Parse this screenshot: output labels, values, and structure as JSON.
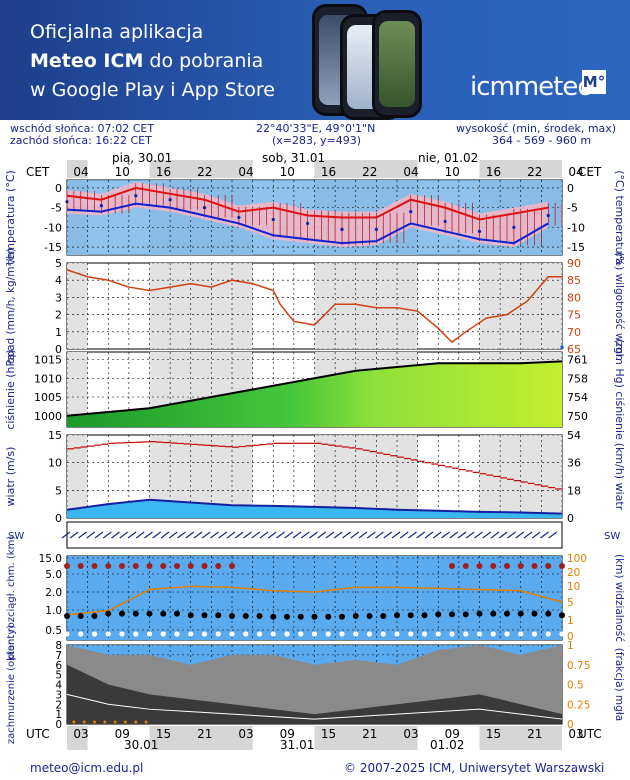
{
  "banner": {
    "line1": "Oficjalna aplikacja",
    "line2_bold": "Meteo ICM",
    "line2_rest": " do pobrania",
    "line3": "w Google Play i App Store",
    "logo_text": "icmmeteo",
    "logo_box": "M°"
  },
  "header": {
    "sunrise": "wschód słońca: 07:02 CET",
    "sunset": "zachód słońca: 16:22 CET",
    "coords": "22°40'33\"E, 49°0'1\"N",
    "grid": "(x=283,  y=493)",
    "alt_label": "wysokość (min, środek, max)",
    "alt_values": "364 - 569 - 960 m"
  },
  "time_axis": {
    "cet": "CET",
    "utc": "UTC",
    "cet_ticks": [
      "04",
      "10",
      "16",
      "22",
      "04",
      "10",
      "16",
      "22",
      "04",
      "10",
      "16",
      "22",
      "04"
    ],
    "utc_ticks": [
      "03",
      "09",
      "15",
      "21",
      "03",
      "09",
      "15",
      "21",
      "03",
      "09",
      "15",
      "21",
      "03"
    ],
    "days_top": [
      "pią, 30.01",
      "sob, 31.01",
      "nie, 01.02"
    ],
    "days_bottom": [
      "30.01",
      "31.01",
      "01.02"
    ]
  },
  "footer": {
    "email": "meteo@icm.edu.pl",
    "copyright": "© 2007-2025 ICM, Uniwersytet Warszawski"
  },
  "colors": {
    "temp_max": "#e01010",
    "temp_min": "#1020d0",
    "rh_line": "#d04010",
    "pressure_line": "#000000",
    "wind_mean": "#0090e0",
    "wind_gust": "#c00000",
    "cloud_base": "#a02020",
    "visibility": "#e08000"
  },
  "chart_data": [
    {
      "type": "line",
      "name": "temperature",
      "ylabel": "temperatura (°C)",
      "ylabel_right": "(°C) temperatura",
      "ylim": [
        -17,
        2
      ],
      "yticks": [
        0,
        -5,
        -10,
        -15
      ],
      "x_hours": [
        0,
        6,
        12,
        18,
        24,
        30,
        36,
        42,
        48,
        54,
        60,
        66,
        72
      ],
      "t_max": [
        -2,
        -3,
        0,
        -1.5,
        -3,
        -6,
        -5,
        -7,
        -7.5,
        -7.5,
        -3,
        -5,
        -8,
        -6.5,
        -5
      ],
      "t_mean": [
        -3.5,
        -4.5,
        -2,
        -3,
        -5,
        -7.5,
        -8,
        -9,
        -10.5,
        -10.5,
        -6,
        -8.5,
        -11,
        -10,
        -7
      ],
      "t_min": [
        -5.5,
        -6,
        -4,
        -5,
        -7,
        -9,
        -12,
        -13,
        -14,
        -13.5,
        -9,
        -11,
        -13,
        -14,
        -9
      ],
      "point_hours": [
        0,
        5,
        10,
        15,
        20,
        25,
        30,
        35,
        40,
        45,
        50,
        55,
        60,
        65,
        70
      ]
    },
    {
      "type": "line",
      "name": "precipitation_humidity",
      "ylabel": "opad (mm/h, kg/m²/h)",
      "ylabel_right": "(%) wilgotność wzgl.",
      "ylim": [
        0,
        5
      ],
      "yticks": [
        0,
        1,
        2,
        3,
        4,
        5
      ],
      "ylim_right": [
        65,
        90
      ],
      "yticks_right": [
        65,
        70,
        75,
        80,
        85,
        90
      ],
      "rh_hours": [
        0,
        3,
        6,
        9,
        12,
        15,
        18,
        21,
        24,
        27,
        30,
        31,
        33,
        36,
        39,
        42,
        45,
        48,
        51,
        54,
        56,
        58,
        61,
        64,
        67,
        70,
        72
      ],
      "rh": [
        88,
        86,
        85,
        83,
        82,
        83,
        84,
        83,
        85,
        84,
        82,
        78,
        73,
        72,
        78,
        78,
        77,
        77,
        76,
        71,
        67,
        70,
        74,
        75,
        79,
        86,
        86
      ],
      "precip": [
        0,
        0,
        0,
        0,
        0,
        0,
        0,
        0,
        0,
        0,
        0,
        0,
        0,
        0,
        0,
        0,
        0,
        0,
        0,
        0,
        0,
        0,
        0,
        0,
        0,
        0,
        0.2
      ]
    },
    {
      "type": "area",
      "name": "pressure",
      "ylabel": "ciśnienie (hPa)",
      "ylabel_right": "(mm Hg) ciśnienie",
      "ylim": [
        997,
        1017
      ],
      "yticks": [
        1000,
        1005,
        1010,
        1015
      ],
      "yticks_right": [
        750,
        754,
        758,
        761
      ],
      "hours": [
        0,
        6,
        12,
        18,
        24,
        30,
        36,
        42,
        48,
        54,
        60,
        66,
        72
      ],
      "hpa": [
        1000,
        1001,
        1002,
        1004,
        1006,
        1008,
        1010,
        1012,
        1013,
        1014,
        1014,
        1014,
        1014.5
      ]
    },
    {
      "type": "bar",
      "name": "wind",
      "ylabel": "wiatr (m/s)",
      "ylabel_right": "(km/h) wiatr",
      "ylim": [
        0,
        15
      ],
      "yticks": [
        0,
        5,
        10,
        15
      ],
      "yticks_right": [
        0,
        18,
        36,
        54
      ],
      "hours": [
        0,
        6,
        12,
        18,
        24,
        30,
        36,
        42,
        48,
        54,
        60,
        66,
        72
      ],
      "mean": [
        1.5,
        2.5,
        3.3,
        2.8,
        2.3,
        2.2,
        2.0,
        1.8,
        1.5,
        1.3,
        1.1,
        1.0,
        0.8
      ],
      "gust": [
        12.5,
        13.5,
        13.8,
        13.3,
        12.8,
        13.5,
        13.5,
        12.5,
        11.0,
        9.5,
        8.0,
        6.5,
        5.0
      ]
    },
    {
      "type": "scatter",
      "name": "wind_direction",
      "label_left": "SW",
      "label_right": "SW",
      "hours": [
        0,
        6,
        12,
        18,
        24,
        30,
        36,
        42,
        48,
        54,
        60,
        66,
        72
      ]
    },
    {
      "type": "scatter",
      "name": "cloud_base_visibility",
      "ylabel": "pion. rozciągł. chm. (km)",
      "ylabel_right": "(km) widzialność",
      "yticks": [
        "0.5",
        "1.0",
        "2.0",
        "5.0",
        "15.0"
      ],
      "yticks_right": [
        "0",
        "1",
        "5",
        "10",
        "20",
        "100"
      ],
      "hours": [
        0,
        6,
        12,
        18,
        24,
        30,
        36,
        42,
        48,
        54,
        60,
        66,
        72
      ],
      "visibility_km": [
        3,
        4,
        15,
        18,
        17,
        14,
        13,
        17,
        17,
        16,
        15,
        14,
        7
      ],
      "cloud_base_km": [
        1.0,
        1.3,
        1.3,
        1.1,
        1.0,
        0.9,
        0.9,
        1.0,
        1.1,
        1.2,
        1.3,
        1.3,
        1.1
      ]
    },
    {
      "type": "area",
      "name": "cloud_cover",
      "ylabel": "zachmurzenie (oktanty)",
      "ylabel_right": "(frakcja) mgła",
      "ylim": [
        0,
        8
      ],
      "yticks": [
        0,
        1,
        2,
        3,
        4,
        5,
        6,
        7,
        8
      ],
      "yticks_right": [
        "0",
        "0.25",
        "0.5",
        "0.75",
        "1"
      ],
      "hours": [
        0,
        6,
        12,
        18,
        24,
        30,
        36,
        42,
        48,
        54,
        60,
        66,
        72
      ],
      "low": [
        6,
        4,
        3,
        2.5,
        2,
        1.5,
        1,
        1.5,
        2,
        2.5,
        3,
        2,
        1
      ],
      "mid": [
        8,
        7,
        7,
        6,
        7,
        7,
        6,
        6.5,
        6,
        7.5,
        8,
        7,
        8
      ],
      "fog": [
        0,
        0,
        0,
        0,
        0,
        0,
        0,
        0,
        0,
        0,
        0,
        0,
        0
      ]
    }
  ]
}
